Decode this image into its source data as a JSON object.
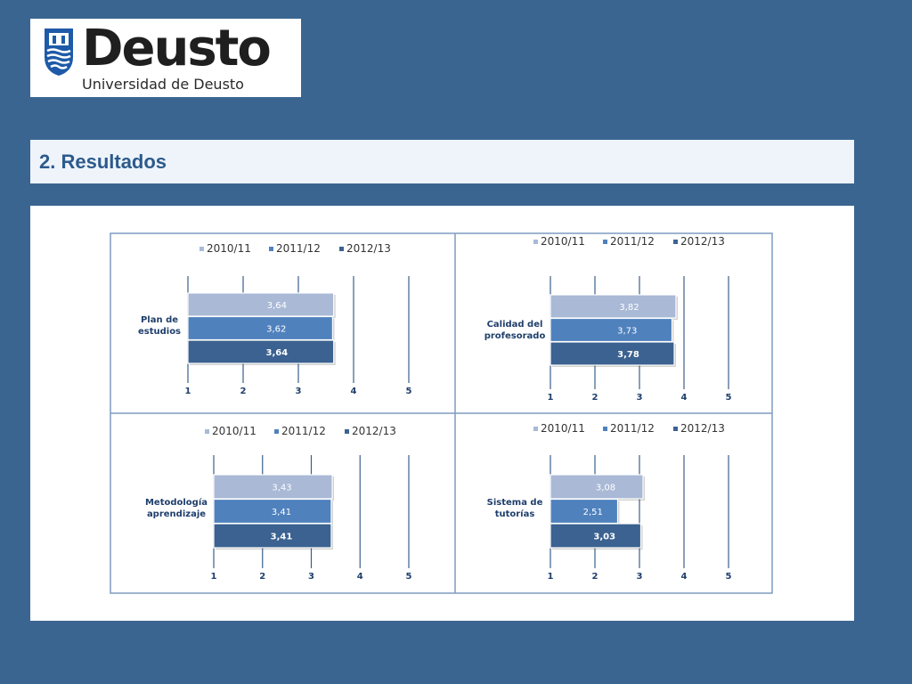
{
  "logo": {
    "wordmark": "Deusto",
    "subtitle": "Universidad de Deusto"
  },
  "section": {
    "title": "2. Resultados"
  },
  "colors": {
    "s2010": "#a9b9d6",
    "s2011": "#4f81bd",
    "s2012": "#3b6290",
    "frame": "#7f9cc0",
    "text": "#1f3f6b",
    "grid": "#3b5f8a"
  },
  "chart_data": [
    {
      "type": "bar",
      "orientation": "horizontal",
      "categories": [
        "Plan de estudios"
      ],
      "series": [
        {
          "name": "2010/11",
          "values": [
            3.64
          ],
          "labels": [
            "3,64"
          ]
        },
        {
          "name": "2011/12",
          "values": [
            3.62
          ],
          "labels": [
            "3,62"
          ]
        },
        {
          "name": "2012/13",
          "values": [
            3.64
          ],
          "labels": [
            "3,64"
          ]
        }
      ],
      "xlim": [
        1,
        5
      ],
      "xticks": [
        "1",
        "2",
        "3",
        "4",
        "5"
      ],
      "grid": true,
      "legend": "top"
    },
    {
      "type": "bar",
      "orientation": "horizontal",
      "categories": [
        "Calidad del profesorado"
      ],
      "series": [
        {
          "name": "2010/11",
          "values": [
            3.82
          ],
          "labels": [
            "3,82"
          ]
        },
        {
          "name": "2011/12",
          "values": [
            3.73
          ],
          "labels": [
            "3,73"
          ]
        },
        {
          "name": "2012/13",
          "values": [
            3.78
          ],
          "labels": [
            "3,78"
          ]
        }
      ],
      "xlim": [
        1,
        5
      ],
      "xticks": [
        "1",
        "2",
        "3",
        "4",
        "5"
      ],
      "grid": true,
      "legend": "top"
    },
    {
      "type": "bar",
      "orientation": "horizontal",
      "categories": [
        "Metodología aprendizaje"
      ],
      "series": [
        {
          "name": "2010/11",
          "values": [
            3.43
          ],
          "labels": [
            "3,43"
          ]
        },
        {
          "name": "2011/12",
          "values": [
            3.41
          ],
          "labels": [
            "3,41"
          ]
        },
        {
          "name": "2012/13",
          "values": [
            3.41
          ],
          "labels": [
            "3,41"
          ]
        }
      ],
      "xlim": [
        1,
        5
      ],
      "xticks": [
        "1",
        "2",
        "3",
        "4",
        "5"
      ],
      "grid": true,
      "legend": "top"
    },
    {
      "type": "bar",
      "orientation": "horizontal",
      "categories": [
        "Sistema de tutorías"
      ],
      "series": [
        {
          "name": "2010/11",
          "values": [
            3.08
          ],
          "labels": [
            "3,08"
          ]
        },
        {
          "name": "2011/12",
          "values": [
            2.51
          ],
          "labels": [
            "2,51"
          ]
        },
        {
          "name": "2012/13",
          "values": [
            3.03
          ],
          "labels": [
            "3,03"
          ]
        }
      ],
      "xlim": [
        1,
        5
      ],
      "xticks": [
        "1",
        "2",
        "3",
        "4",
        "5"
      ],
      "grid": true,
      "legend": "top"
    }
  ]
}
